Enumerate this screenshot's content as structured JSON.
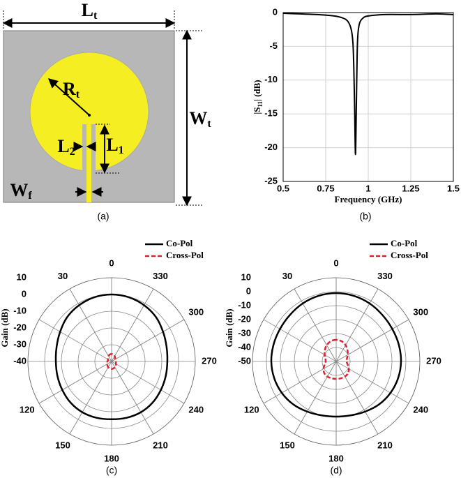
{
  "diagram": {
    "caption": "(a)",
    "labels": [
      {
        "main": "L",
        "sub": "t"
      },
      {
        "main": "W",
        "sub": "t"
      },
      {
        "main": "R",
        "sub": "t"
      },
      {
        "main": "L",
        "sub": "2"
      },
      {
        "main": "L",
        "sub": "1"
      },
      {
        "main": "W",
        "sub": "f"
      }
    ]
  },
  "chart_data": [
    {
      "type": "line",
      "caption": "(b)",
      "xlabel": "Frequency (GHz)",
      "ylabel": {
        "before": "|S",
        "sub": "11",
        "after": "| (dB)"
      },
      "x": [
        0.5,
        0.6,
        0.7,
        0.8,
        0.85,
        0.88,
        0.9,
        0.91,
        0.915,
        0.92,
        0.925,
        0.93,
        0.935,
        0.94,
        0.95,
        0.97,
        1.0,
        1.1,
        1.25,
        1.4,
        1.5
      ],
      "series": [
        {
          "color": "#000000",
          "values": [
            -0.1,
            -0.2,
            -0.3,
            -0.5,
            -0.8,
            -1.3,
            -2.5,
            -4.5,
            -8,
            -14,
            -21,
            -14,
            -6,
            -3,
            -1.5,
            -0.8,
            -0.5,
            -0.3,
            -0.3,
            -0.2,
            -0.3
          ]
        }
      ],
      "xlim": [
        0.5,
        1.5
      ],
      "xticks": [
        0.5,
        0.75,
        1,
        1.25,
        1.5
      ],
      "ylim": [
        -25,
        0
      ],
      "yticks": [
        0,
        -5,
        -10,
        -15,
        -20,
        -25
      ],
      "grid": true
    },
    {
      "type": "polar",
      "caption": "(c)",
      "rlabel": "Gain (dB)",
      "rlim": [
        -40,
        10
      ],
      "rticks": [
        10,
        0,
        -10,
        -20,
        -30,
        -40
      ],
      "thetaticks": [
        0,
        30,
        120,
        150,
        180,
        210,
        240,
        270,
        300,
        330
      ],
      "theta": [
        0,
        15,
        30,
        45,
        60,
        75,
        90,
        105,
        120,
        135,
        150,
        165,
        180,
        195,
        210,
        225,
        240,
        255,
        270,
        285,
        300,
        315,
        330,
        345
      ],
      "series": [
        {
          "name": "Co-Pol",
          "color": "#000000",
          "dashed": false,
          "values": [
            0,
            -0.3,
            -1.2,
            -2.5,
            -4.5,
            -6,
            -6.7,
            -6.5,
            -6,
            -5.3,
            -5,
            -5.2,
            -5.5,
            -5.2,
            -5,
            -5.3,
            -6,
            -6.5,
            -6.7,
            -6,
            -4.5,
            -2.5,
            -1.2,
            -0.3
          ]
        },
        {
          "name": "Cross-Pol",
          "color": "#e0202a",
          "dashed": true,
          "values": [
            -35.5,
            -35.7,
            -36.3,
            -37,
            -37.5,
            -37.7,
            -37.5,
            -37.3,
            -37,
            -36.5,
            -36,
            -35.7,
            -35.5,
            -35.7,
            -36,
            -36.5,
            -37,
            -37.3,
            -37.5,
            -37.7,
            -37.5,
            -37,
            -36.3,
            -35.7
          ]
        }
      ]
    },
    {
      "type": "polar",
      "caption": "(d)",
      "rlabel": "Gain (dB)",
      "rlim": [
        -50,
        10
      ],
      "rticks": [
        10,
        0,
        -10,
        -20,
        -30,
        -40,
        -50
      ],
      "thetaticks": [
        0,
        30,
        120,
        150,
        180,
        210,
        240,
        270,
        300,
        330
      ],
      "theta": [
        0,
        15,
        30,
        45,
        60,
        75,
        90,
        105,
        120,
        135,
        150,
        165,
        180,
        195,
        210,
        225,
        240,
        255,
        270,
        285,
        300,
        315,
        330,
        345
      ],
      "series": [
        {
          "name": "Co-Pol",
          "color": "#000000",
          "dashed": false,
          "values": [
            -1,
            -1.3,
            -2,
            -3,
            -3.5,
            -3.5,
            -3.5,
            -4,
            -5,
            -6.5,
            -8.5,
            -10,
            -10.5,
            -10,
            -8.5,
            -6.5,
            -5,
            -4,
            -3.5,
            -3.5,
            -3.5,
            -3,
            -2,
            -1.3
          ]
        },
        {
          "name": "Cross-Pol",
          "color": "#e0202a",
          "dashed": true,
          "values": [
            -34.5,
            -35,
            -36.5,
            -38.5,
            -40.5,
            -42,
            -42.5,
            -41.5,
            -39.5,
            -38,
            -37.5,
            -37.5,
            -37.5,
            -37.5,
            -37.5,
            -38,
            -39.5,
            -41.5,
            -42.5,
            -42,
            -40.5,
            -38.5,
            -36.5,
            -35
          ]
        }
      ]
    }
  ]
}
